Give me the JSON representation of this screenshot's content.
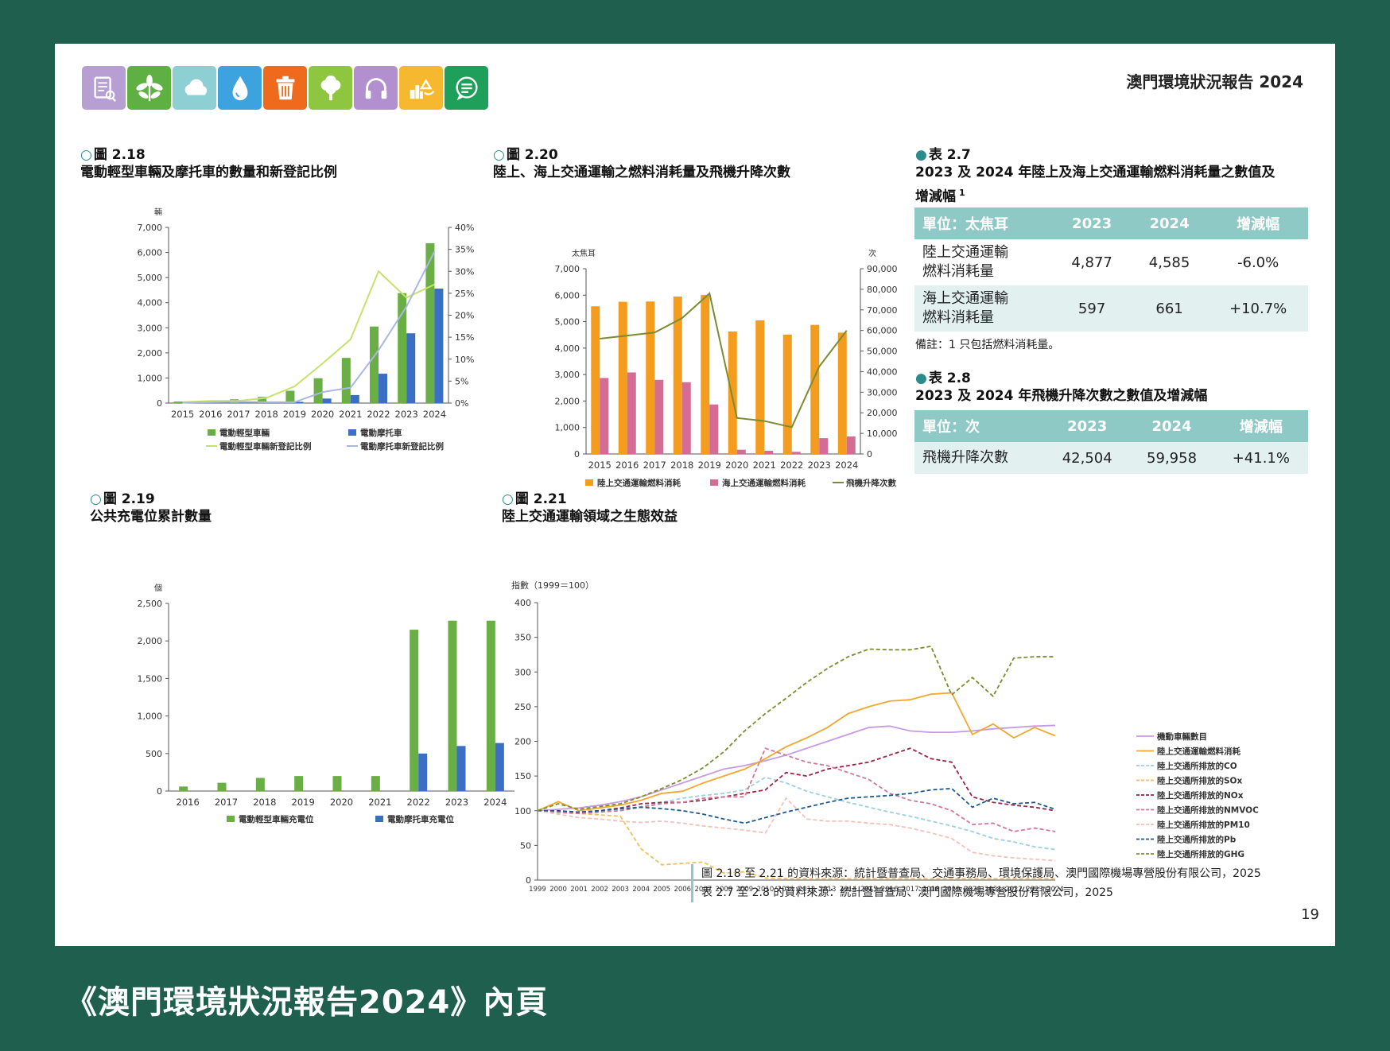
{
  "page": {
    "report_title": "澳門環境狀況報告 2024",
    "page_number": "19",
    "caption": "《澳門環境狀況報告2024》內頁",
    "icons": [
      {
        "name": "document-icon",
        "color": "#b79fd3"
      },
      {
        "name": "leaf-icon",
        "color": "#5fb043"
      },
      {
        "name": "cloud-icon",
        "color": "#8ecfd3"
      },
      {
        "name": "water-drop-icon",
        "color": "#3ca3de"
      },
      {
        "name": "trash-bin-icon",
        "color": "#f06a1e"
      },
      {
        "name": "tree-icon",
        "color": "#8ec63f"
      },
      {
        "name": "headphones-icon",
        "color": "#b28fcf"
      },
      {
        "name": "recycle-icon",
        "color": "#f5b82e"
      },
      {
        "name": "chat-icon",
        "color": "#1fa05a"
      }
    ]
  },
  "fig218": {
    "num": "圖 2.18",
    "title": "電動輕型車輛及摩托車的數量和新登記比例",
    "y_unit": "輛",
    "chart_data": {
      "type": "bar",
      "categories": [
        "2015",
        "2016",
        "2017",
        "2018",
        "2019",
        "2020",
        "2021",
        "2022",
        "2023",
        "2024"
      ],
      "series": [
        {
          "name": "電動輕型車輛",
          "color": "#6aaf45",
          "values": [
            60,
            90,
            150,
            250,
            490,
            990,
            1800,
            3050,
            4380,
            6370
          ]
        },
        {
          "name": "電動摩托車",
          "color": "#3a6fc5",
          "values": [
            40,
            70,
            80,
            60,
            50,
            180,
            320,
            1170,
            2780,
            4560
          ]
        }
      ],
      "lines": [
        {
          "name": "電動輕型車輛新登記比例",
          "color": "#c6e26a",
          "values": [
            0.2,
            0.5,
            0.5,
            1.2,
            3.8,
            9.0,
            14.5,
            30.0,
            24.0,
            27.0
          ]
        },
        {
          "name": "電動摩托車新登記比例",
          "color": "#aab8e0",
          "values": [
            0.1,
            0.2,
            0.3,
            0.2,
            0.2,
            2.5,
            3.5,
            12.0,
            22.0,
            34.5
          ]
        }
      ],
      "ylim": [
        0,
        7000
      ],
      "y_ticks": [
        "0",
        "1,000",
        "2,000",
        "3,000",
        "4,000",
        "5,000",
        "6,000",
        "7,000"
      ],
      "y2lim": [
        0,
        40
      ],
      "y2_ticks": [
        "0%",
        "5%",
        "10%",
        "15%",
        "20%",
        "25%",
        "30%",
        "35%",
        "40%"
      ]
    }
  },
  "fig220": {
    "num": "圖 2.20",
    "title": "陸上、海上交通運輸之燃料消耗量及飛機升降次數",
    "y_unit": "太焦耳",
    "y2_unit": "次",
    "chart_data": {
      "type": "bar",
      "categories": [
        "2015",
        "2016",
        "2017",
        "2018",
        "2019",
        "2020",
        "2021",
        "2022",
        "2023",
        "2024"
      ],
      "series": [
        {
          "name": "陸上交通運輸燃料消耗",
          "color": "#f39c1e",
          "values": [
            5580,
            5750,
            5760,
            5950,
            6010,
            4630,
            5050,
            4510,
            4877,
            4585
          ]
        },
        {
          "name": "海上交通運輸燃料消耗",
          "color": "#d46c93",
          "values": [
            2870,
            3080,
            2800,
            2710,
            1870,
            160,
            120,
            80,
            597,
            661
          ]
        }
      ],
      "lines": [
        {
          "name": "飛機升降次數",
          "color": "#7c8c32",
          "values": [
            56000,
            57500,
            59000,
            66000,
            78000,
            17500,
            16000,
            13000,
            42504,
            59958
          ]
        }
      ],
      "ylim": [
        0,
        7000
      ],
      "y_ticks": [
        "0",
        "1,000",
        "2,000",
        "3,000",
        "4,000",
        "5,000",
        "6,000",
        "7,000"
      ],
      "y2lim": [
        0,
        90000
      ],
      "y2_ticks": [
        "0",
        "10,000",
        "20,000",
        "30,000",
        "40,000",
        "50,000",
        "60,000",
        "70,000",
        "80,000",
        "90,000"
      ]
    }
  },
  "fig219": {
    "num": "圖 2.19",
    "title": "公共充電位累計數量",
    "y_unit": "個",
    "chart_data": {
      "type": "bar",
      "categories": [
        "2016",
        "2017",
        "2018",
        "2019",
        "2020",
        "2021",
        "2022",
        "2023",
        "2024"
      ],
      "series": [
        {
          "name": "電動輕型車輛充電位",
          "color": "#6aaf45",
          "values": [
            60,
            110,
            175,
            200,
            200,
            200,
            2150,
            2270,
            2270
          ]
        },
        {
          "name": "電動摩托車充電位",
          "color": "#3a6fc5",
          "values": [
            0,
            0,
            0,
            0,
            0,
            0,
            500,
            600,
            640
          ]
        }
      ],
      "ylim": [
        0,
        2500
      ],
      "y_ticks": [
        "0",
        "500",
        "1,000",
        "1,500",
        "2,000",
        "2,500"
      ]
    }
  },
  "fig221": {
    "num": "圖 2.21",
    "title": "陸上交通運輸領域之生態效益",
    "y_unit": "指數（1999＝100）",
    "chart_data": {
      "type": "line",
      "x": [
        "1999",
        "2000",
        "2001",
        "2002",
        "2003",
        "2004",
        "2005",
        "2006",
        "2007",
        "2008",
        "2009",
        "2010",
        "2011",
        "2012",
        "2013",
        "2014",
        "2015",
        "2016",
        "2017",
        "2018",
        "2019",
        "2020",
        "2021",
        "2022",
        "2023",
        "2024"
      ],
      "ylim": [
        0,
        400
      ],
      "y_ticks": [
        "0",
        "50",
        "100",
        "150",
        "200",
        "250",
        "300",
        "350",
        "400"
      ],
      "series": [
        {
          "name": "機動車輛數目",
          "color": "#c79be3",
          "dash": "",
          "values": [
            100,
            102,
            104,
            108,
            113,
            120,
            130,
            140,
            150,
            160,
            165,
            172,
            180,
            190,
            200,
            210,
            220,
            222,
            215,
            213,
            213,
            215,
            218,
            220,
            222,
            223
          ]
        },
        {
          "name": "陸上交通運輸燃料消耗",
          "color": "#f0a830",
          "dash": "",
          "values": [
            100,
            113,
            100,
            104,
            108,
            115,
            125,
            128,
            140,
            150,
            160,
            175,
            192,
            205,
            220,
            240,
            250,
            258,
            260,
            268,
            270,
            210,
            225,
            205,
            220,
            208
          ]
        },
        {
          "name": "陸上交通所排放的CO",
          "color": "#9dcfe0",
          "dash": "5,3",
          "values": [
            100,
            97,
            96,
            98,
            101,
            106,
            112,
            118,
            122,
            125,
            130,
            148,
            140,
            128,
            120,
            112,
            105,
            98,
            92,
            85,
            78,
            70,
            60,
            55,
            48,
            44
          ]
        },
        {
          "name": "陸上交通所排放的SOx",
          "color": "#f0c060",
          "dash": "5,3",
          "values": [
            100,
            98,
            96,
            94,
            92,
            45,
            22,
            24,
            26,
            10,
            12,
            3,
            2,
            2,
            2,
            2,
            2,
            2,
            2,
            2,
            2,
            2,
            2,
            2,
            2,
            2
          ]
        },
        {
          "name": "陸上交通所排放的NOx",
          "color": "#9a2545",
          "dash": "5,3",
          "values": [
            100,
            99,
            98,
            100,
            104,
            110,
            112,
            112,
            115,
            120,
            125,
            130,
            155,
            150,
            160,
            165,
            170,
            180,
            190,
            175,
            170,
            120,
            112,
            108,
            105,
            100
          ]
        },
        {
          "name": "陸上交通所排放的NMVOC",
          "color": "#d07a98",
          "dash": "5,3",
          "values": [
            100,
            98,
            96,
            98,
            100,
            105,
            110,
            112,
            118,
            120,
            120,
            190,
            180,
            170,
            165,
            155,
            145,
            125,
            115,
            110,
            100,
            80,
            82,
            70,
            75,
            70
          ]
        },
        {
          "name": "陸上交通所排放的PM10",
          "color": "#f4c1b8",
          "dash": "5,3",
          "values": [
            100,
            95,
            90,
            88,
            85,
            83,
            85,
            82,
            78,
            75,
            72,
            68,
            118,
            88,
            85,
            85,
            82,
            80,
            75,
            68,
            60,
            40,
            35,
            32,
            30,
            28
          ]
        },
        {
          "name": "陸上交通所排放的Pb",
          "color": "#1f5a8f",
          "dash": "5,3",
          "values": [
            100,
            100,
            98,
            100,
            103,
            105,
            103,
            100,
            95,
            88,
            82,
            90,
            98,
            105,
            112,
            118,
            120,
            122,
            125,
            130,
            132,
            105,
            118,
            110,
            112,
            102
          ]
        },
        {
          "name": "陸上交通所排放的GHG",
          "color": "#7c8c32",
          "dash": "5,3",
          "values": [
            100,
            110,
            102,
            106,
            110,
            120,
            132,
            145,
            162,
            185,
            215,
            240,
            262,
            285,
            305,
            322,
            333,
            332,
            332,
            337,
            267,
            292,
            265,
            320,
            322,
            322
          ]
        }
      ]
    }
  },
  "table27": {
    "num": "表 2.7",
    "title_line1": "2023 及 2024 年陸上及海上交通運輸燃料消耗量之數值及",
    "title_line2": "增減幅",
    "title_sup": "1",
    "headers": [
      "單位：太焦耳",
      "2023",
      "2024",
      "增減幅"
    ],
    "rows": [
      {
        "label_line1": "陸上交通運輸",
        "label_line2": "燃料消耗量",
        "v2023": "4,877",
        "v2024": "4,585",
        "change": "-6.0%"
      },
      {
        "label_line1": "海上交通運輸",
        "label_line2": "燃料消耗量",
        "v2023": "597",
        "v2024": "661",
        "change": "+10.7%"
      }
    ],
    "note": "備註：1 只包括燃料消耗量。"
  },
  "table28": {
    "num": "表 2.8",
    "title": "2023 及 2024 年飛機升降次數之數值及增減幅",
    "headers": [
      "單位：次",
      "2023",
      "2024",
      "增減幅"
    ],
    "rows": [
      {
        "label": "飛機升降次數",
        "v2023": "42,504",
        "v2024": "59,958",
        "change": "+41.1%"
      }
    ]
  },
  "sources": {
    "line1": "圖 2.18 至 2.21 的資料來源：統計暨普查局、交通事務局、環境保護局、澳門國際機場專營股份有限公司，2025",
    "line2": "表 2.7 至 2.8 的資料來源：統計暨普查局、澳門國際機場專營股份有限公司，2025"
  }
}
